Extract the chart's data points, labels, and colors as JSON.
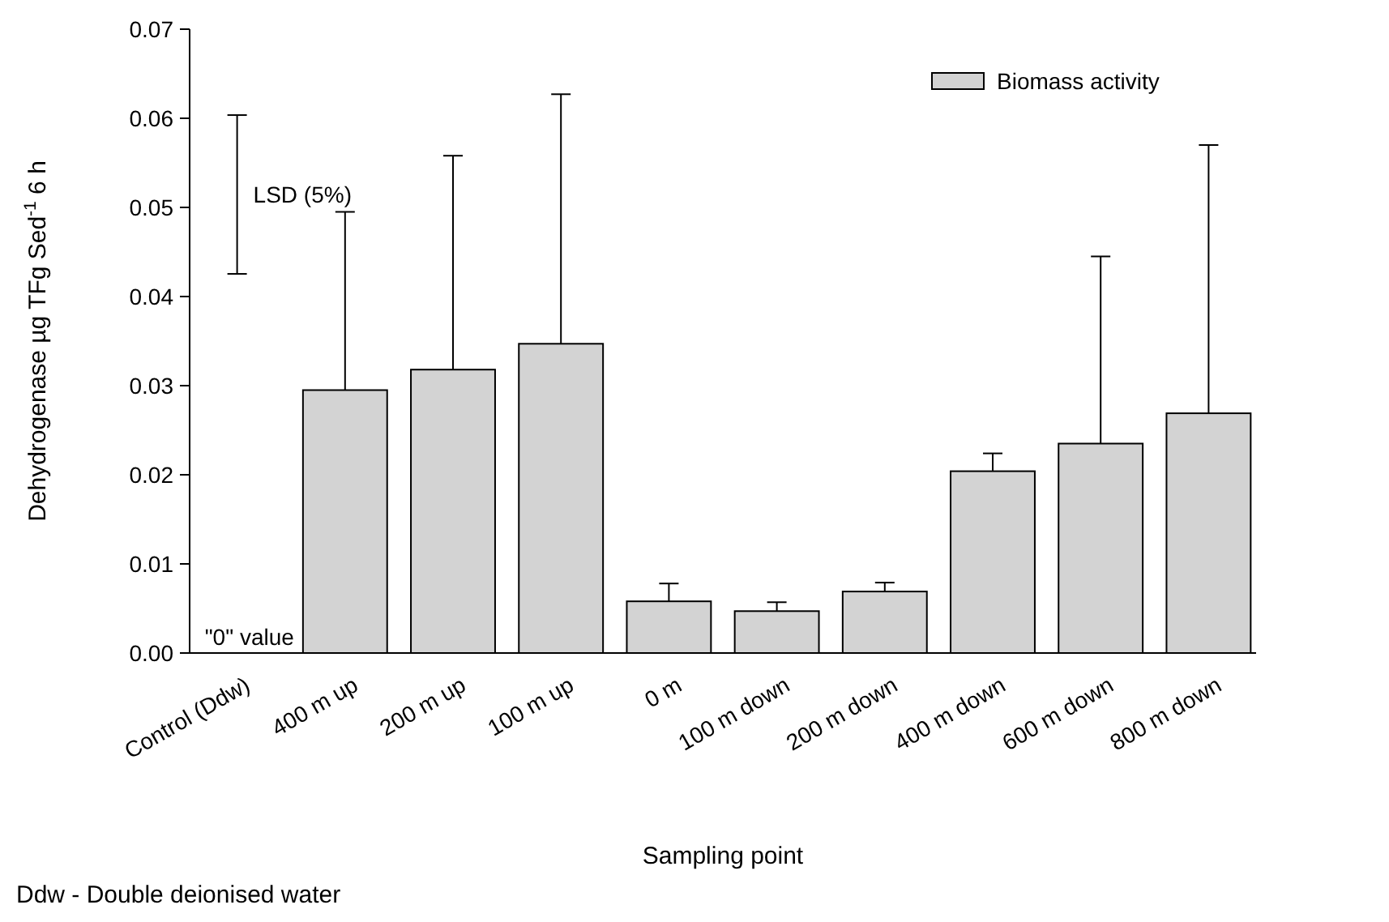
{
  "chart_data": {
    "type": "bar",
    "xlabel": "Sampling point",
    "ylabel": "Dehydrogenase µg TFg Sed$^{-1}$  6 h",
    "categories": [
      "Control (Ddw)",
      "400 m up",
      "200 m up",
      "100 m up",
      "0 m",
      "100 m down",
      "200 m down",
      "400 m down",
      "600 m down",
      "800 m down"
    ],
    "series": [
      {
        "name": "Biomass activity",
        "color": "#d3d3d3",
        "values": [
          null,
          0.0295,
          0.0318,
          0.0347,
          0.0058,
          0.0047,
          0.0069,
          0.0204,
          0.0235,
          0.0269
        ],
        "errors": [
          null,
          [
            0.0295,
            0.0495
          ],
          [
            0.0318,
            0.0558
          ],
          [
            0.0347,
            0.0627
          ],
          [
            0.0058,
            0.0078
          ],
          [
            0.0047,
            0.0057
          ],
          [
            0.0069,
            0.0079
          ],
          [
            0.0204,
            0.0224
          ],
          [
            0.0235,
            0.0445
          ],
          [
            0.0269,
            0.057
          ]
        ]
      }
    ],
    "ylim": [
      0,
      0.07
    ],
    "yticks": [
      {
        "value": 0,
        "label": "0.00"
      },
      {
        "value": 0.01,
        "label": "0.01"
      },
      {
        "value": 0.02,
        "label": "0.02"
      },
      {
        "value": 0.03,
        "label": "0.03"
      },
      {
        "value": 0.04,
        "label": "0.04"
      },
      {
        "value": 0.05,
        "label": "0.05"
      },
      {
        "value": 0.06,
        "label": "0.06"
      },
      {
        "value": 0.07,
        "label": "0.07"
      }
    ],
    "legend": "top right",
    "annotations": [
      "LSD (5%)",
      "\"0\" value",
      "Ddw - Double deionised water"
    ]
  }
}
